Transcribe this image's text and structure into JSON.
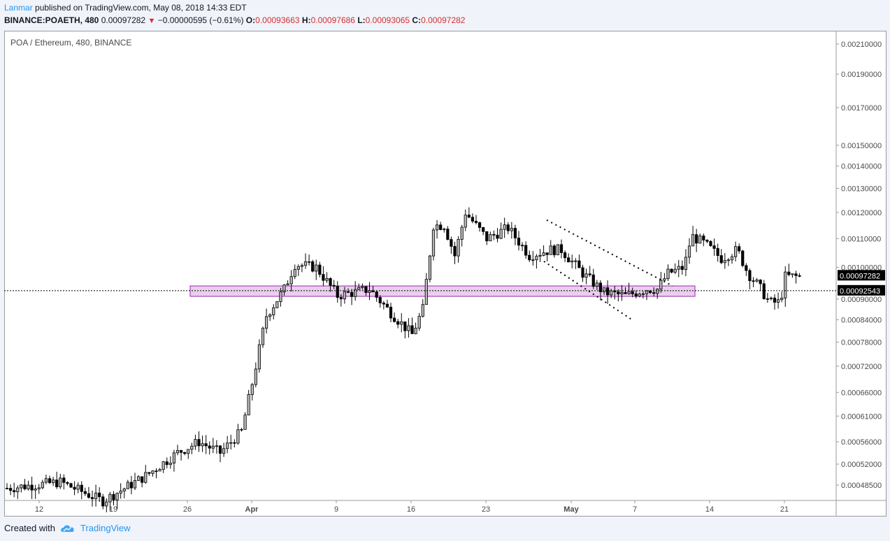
{
  "header": {
    "author": "Lanmar",
    "published_text": "published on TradingView.com, May 08, 2018 14:33 EDT",
    "symbol_interval": "BINANCE:POAETH, 480",
    "last_price": "0.00097282",
    "change": "−0.00000595 (−0.61%)",
    "o_label": "O:",
    "o_value": "0.00093663",
    "h_label": "H:",
    "h_value": "0.00097686",
    "l_label": "L:",
    "l_value": "0.00093065",
    "c_label": "C:",
    "c_value": "0.00097282"
  },
  "footer": {
    "created_with": "Created with",
    "brand": "TradingView"
  },
  "chart_data": {
    "type": "candlestick",
    "title": "POA / Ethereum, 480, BINANCE",
    "y_scale": "log",
    "ylim": [
      0.00044,
      0.00222
    ],
    "price_ticks": [
      "0.00210000",
      "0.00190000",
      "0.00170000",
      "0.00150000",
      "0.00140000",
      "0.00130000",
      "0.00120000",
      "0.00110000",
      "0.00100000",
      "0.00090000",
      "0.00084000",
      "0.00078000",
      "0.00072000",
      "0.00066000",
      "0.00061000",
      "0.00056000",
      "0.00052000",
      "0.00048500"
    ],
    "x_ticks": [
      {
        "label": "12",
        "bold": false
      },
      {
        "label": "19",
        "bold": false
      },
      {
        "label": "26",
        "bold": false
      },
      {
        "label": "Apr",
        "bold": true
      },
      {
        "label": "9",
        "bold": false
      },
      {
        "label": "16",
        "bold": false
      },
      {
        "label": "23",
        "bold": false
      },
      {
        "label": "May",
        "bold": true
      },
      {
        "label": "7",
        "bold": false
      },
      {
        "label": "14",
        "bold": false
      },
      {
        "label": "21",
        "bold": false
      }
    ],
    "current_price_label": "0.00097282",
    "horizontal_line_label": "0.00092543",
    "horizontal_line_value": 0.00092543,
    "support_zone": {
      "low": 0.000908,
      "high": 0.00094,
      "color": "#e1bee7"
    },
    "channel": [
      {
        "from": [
          0,
          0.00117
        ],
        "to": [
          0,
          0.00094
        ]
      },
      {
        "from": [
          0,
          0.00106
        ],
        "to": [
          0,
          0.00084
        ]
      }
    ],
    "anchors": [
      {
        "day": 0,
        "price": 0.00048
      },
      {
        "day": 5,
        "price": 0.00049
      },
      {
        "day": 9,
        "price": 0.00046
      },
      {
        "day": 13,
        "price": 0.0005
      },
      {
        "day": 16,
        "price": 0.00054
      },
      {
        "day": 18,
        "price": 0.00056
      },
      {
        "day": 20,
        "price": 0.00054
      },
      {
        "day": 22,
        "price": 0.00058
      },
      {
        "day": 23,
        "price": 0.00068
      },
      {
        "day": 24.3,
        "price": 0.00085
      },
      {
        "day": 26,
        "price": 0.00093
      },
      {
        "day": 27,
        "price": 0.00101
      },
      {
        "day": 29,
        "price": 0.001
      },
      {
        "day": 31,
        "price": 0.00091
      },
      {
        "day": 34,
        "price": 0.00093
      },
      {
        "day": 36,
        "price": 0.00086
      },
      {
        "day": 38,
        "price": 0.0008
      },
      {
        "day": 39,
        "price": 0.00087
      },
      {
        "day": 40,
        "price": 0.00115
      },
      {
        "day": 41,
        "price": 0.00115
      },
      {
        "day": 42,
        "price": 0.00104
      },
      {
        "day": 43,
        "price": 0.0012
      },
      {
        "day": 45,
        "price": 0.0011
      },
      {
        "day": 47,
        "price": 0.00114
      },
      {
        "day": 49,
        "price": 0.00104
      },
      {
        "day": 51,
        "price": 0.00106
      },
      {
        "day": 52,
        "price": 0.00106
      },
      {
        "day": 54,
        "price": 0.00098
      },
      {
        "day": 56,
        "price": 0.00092
      },
      {
        "day": 58,
        "price": 0.00091
      },
      {
        "day": 60,
        "price": 0.00093
      },
      {
        "day": 61,
        "price": 0.00093
      },
      {
        "day": 62,
        "price": 0.00098
      },
      {
        "day": 63.5,
        "price": 0.001
      },
      {
        "day": 64.2,
        "price": 0.00111
      },
      {
        "day": 65.5,
        "price": 0.00108
      },
      {
        "day": 67,
        "price": 0.00103
      },
      {
        "day": 68.5,
        "price": 0.00106
      },
      {
        "day": 69.5,
        "price": 0.00098
      },
      {
        "day": 70.5,
        "price": 0.00094
      },
      {
        "day": 71.5,
        "price": 0.00089
      },
      {
        "day": 72.5,
        "price": 0.00089
      },
      {
        "day": 73,
        "price": 0.00097
      },
      {
        "day": 74.3,
        "price": 0.00097
      }
    ]
  }
}
